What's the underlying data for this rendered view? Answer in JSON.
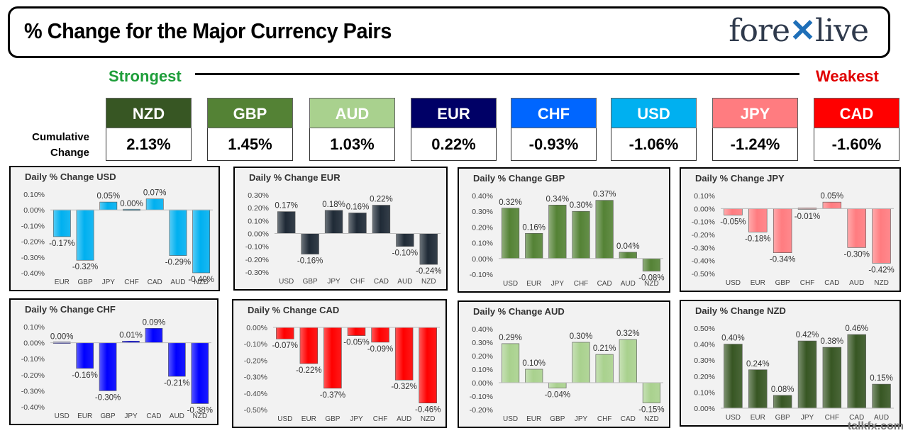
{
  "header": {
    "title": "% Change for the Major Currency Pairs",
    "brand": "forexlive"
  },
  "strength": {
    "strongest": "Strongest",
    "weakest": "Weakest"
  },
  "cumulative": {
    "label_line1": "Cumulative",
    "label_line2": "Change",
    "currencies": [
      {
        "code": "NZD",
        "value": "2.13%",
        "color": "#375623"
      },
      {
        "code": "GBP",
        "value": "1.45%",
        "color": "#548235"
      },
      {
        "code": "AUD",
        "value": "1.03%",
        "color": "#a9d18e"
      },
      {
        "code": "EUR",
        "value": "0.22%",
        "color": "#000066"
      },
      {
        "code": "CHF",
        "value": "-0.93%",
        "color": "#0066ff"
      },
      {
        "code": "USD",
        "value": "-1.06%",
        "color": "#00b0f0"
      },
      {
        "code": "JPY",
        "value": "-1.24%",
        "color": "#ff7c80"
      },
      {
        "code": "CAD",
        "value": "-1.60%",
        "color": "#ff0000"
      }
    ]
  },
  "chart_data": [
    {
      "type": "bar",
      "title": "Daily % Change USD",
      "color": "#00b0f0",
      "categories": [
        "EUR",
        "GBP",
        "JPY",
        "CHF",
        "CAD",
        "AUD",
        "NZD"
      ],
      "values": [
        -0.17,
        -0.32,
        0.05,
        0.0,
        0.07,
        -0.29,
        -0.4
      ],
      "labels": [
        "-0.17%",
        "-0.32%",
        "0.05%",
        "0.00%",
        "0.07%",
        "-0.29%",
        "-0.40%"
      ],
      "ylim": [
        -0.4,
        0.1
      ],
      "ticks": [
        0.1,
        0.0,
        -0.1,
        -0.2,
        -0.3,
        -0.4
      ],
      "tick_labels": [
        "0.10%",
        "0.00%",
        "-0.10%",
        "-0.20%",
        "-0.30%",
        "-0.40%"
      ],
      "grid": false
    },
    {
      "type": "bar",
      "title": "Daily % Change EUR",
      "color": "#1f2a36",
      "categories": [
        "USD",
        "GBP",
        "JPY",
        "CHF",
        "CAD",
        "AUD",
        "NZD"
      ],
      "values": [
        0.17,
        -0.16,
        0.18,
        0.16,
        0.22,
        -0.1,
        -0.24
      ],
      "labels": [
        "0.17%",
        "-0.16%",
        "0.18%",
        "0.16%",
        "0.22%",
        "-0.10%",
        "-0.24%"
      ],
      "ylim": [
        -0.3,
        0.3
      ],
      "ticks": [
        0.3,
        0.2,
        0.1,
        0.0,
        -0.1,
        -0.2,
        -0.3
      ],
      "tick_labels": [
        "0.30%",
        "0.20%",
        "0.10%",
        "0.00%",
        "-0.10%",
        "-0.20%",
        "-0.30%"
      ],
      "grid": false
    },
    {
      "type": "bar",
      "title": "Daily % Change GBP",
      "color": "#548235",
      "categories": [
        "USD",
        "EUR",
        "JPY",
        "CHF",
        "CAD",
        "AUD",
        "NZD"
      ],
      "values": [
        0.32,
        0.16,
        0.34,
        0.3,
        0.37,
        0.04,
        -0.08
      ],
      "labels": [
        "0.32%",
        "0.16%",
        "0.34%",
        "0.30%",
        "0.37%",
        "0.04%",
        "-0.08%"
      ],
      "ylim": [
        -0.1,
        0.4
      ],
      "ticks": [
        0.4,
        0.3,
        0.2,
        0.1,
        0.0,
        -0.1
      ],
      "tick_labels": [
        "0.40%",
        "0.30%",
        "0.20%",
        "0.10%",
        "0.00%",
        "-0.10%"
      ],
      "grid": false
    },
    {
      "type": "bar",
      "title": "Daily % Change JPY",
      "color": "#ff7c80",
      "categories": [
        "USD",
        "EUR",
        "GBP",
        "CHF",
        "CAD",
        "AUD",
        "NZD"
      ],
      "values": [
        -0.05,
        -0.18,
        -0.34,
        -0.01,
        0.05,
        -0.3,
        -0.42
      ],
      "labels": [
        "-0.05%",
        "-0.18%",
        "-0.34%",
        "-0.01%",
        "0.05%",
        "-0.30%",
        "-0.42%"
      ],
      "ylim": [
        -0.5,
        0.1
      ],
      "ticks": [
        0.1,
        0.0,
        -0.1,
        -0.2,
        -0.3,
        -0.4,
        -0.5
      ],
      "tick_labels": [
        "0.10%",
        "0.00%",
        "-0.10%",
        "-0.20%",
        "-0.30%",
        "-0.40%",
        "-0.50%"
      ],
      "grid": false
    },
    {
      "type": "bar",
      "title": "Daily % Change CHF",
      "color": "#0000ff",
      "categories": [
        "USD",
        "EUR",
        "GBP",
        "JPY",
        "CAD",
        "AUD",
        "NZD"
      ],
      "values": [
        0.0,
        -0.16,
        -0.3,
        0.01,
        0.09,
        -0.21,
        -0.38
      ],
      "labels": [
        "0.00%",
        "-0.16%",
        "-0.30%",
        "0.01%",
        "0.09%",
        "-0.21%",
        "-0.38%"
      ],
      "ylim": [
        -0.4,
        0.1
      ],
      "ticks": [
        0.1,
        0.0,
        -0.1,
        -0.2,
        -0.3,
        -0.4
      ],
      "tick_labels": [
        "0.10%",
        "0.00%",
        "-0.10%",
        "-0.20%",
        "-0.30%",
        "-0.40%"
      ],
      "grid": false
    },
    {
      "type": "bar",
      "title": "Daily % Change CAD",
      "color": "#ff0000",
      "categories": [
        "USD",
        "EUR",
        "GBP",
        "JPY",
        "CHF",
        "AUD",
        "NZD"
      ],
      "values": [
        -0.07,
        -0.22,
        -0.37,
        -0.05,
        -0.09,
        -0.32,
        -0.46
      ],
      "labels": [
        "-0.07%",
        "-0.22%",
        "-0.37%",
        "-0.05%",
        "-0.09%",
        "-0.32%",
        "-0.46%"
      ],
      "ylim": [
        -0.5,
        0.0
      ],
      "ticks": [
        0.0,
        -0.1,
        -0.2,
        -0.3,
        -0.4,
        -0.5
      ],
      "tick_labels": [
        "0.00%",
        "-0.10%",
        "-0.20%",
        "-0.30%",
        "-0.40%",
        "-0.50%"
      ],
      "grid": false
    },
    {
      "type": "bar",
      "title": "Daily % Change AUD",
      "color": "#a9d18e",
      "categories": [
        "USD",
        "EUR",
        "GBP",
        "JPY",
        "CHF",
        "CAD",
        "NZD"
      ],
      "values": [
        0.29,
        0.1,
        -0.04,
        0.3,
        0.21,
        0.32,
        -0.15
      ],
      "labels": [
        "0.29%",
        "0.10%",
        "-0.04%",
        "0.30%",
        "0.21%",
        "0.32%",
        "-0.15%"
      ],
      "ylim": [
        -0.2,
        0.4
      ],
      "ticks": [
        0.4,
        0.3,
        0.2,
        0.1,
        0.0,
        -0.1,
        -0.2
      ],
      "tick_labels": [
        "0.40%",
        "0.30%",
        "0.20%",
        "0.10%",
        "0.00%",
        "-0.10%",
        "-0.20%"
      ],
      "grid": false
    },
    {
      "type": "bar",
      "title": "Daily % Change NZD",
      "color": "#375623",
      "categories": [
        "USD",
        "EUR",
        "GBP",
        "JPY",
        "CHF",
        "CAD",
        "AUD"
      ],
      "values": [
        0.4,
        0.24,
        0.08,
        0.42,
        0.38,
        0.46,
        0.15
      ],
      "labels": [
        "0.40%",
        "0.24%",
        "0.08%",
        "0.42%",
        "0.38%",
        "0.46%",
        "0.15%"
      ],
      "ylim": [
        0.0,
        0.5
      ],
      "ticks": [
        0.5,
        0.4,
        0.3,
        0.2,
        0.1,
        0.0
      ],
      "tick_labels": [
        "0.50%",
        "0.40%",
        "0.30%",
        "0.20%",
        "0.10%",
        "0.00%"
      ],
      "grid": false
    }
  ],
  "watermark": "talkfx.com"
}
